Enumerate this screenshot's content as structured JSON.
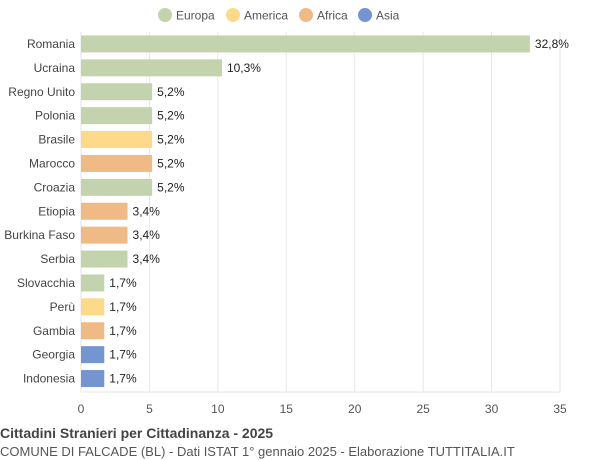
{
  "chart_data": {
    "type": "bar",
    "orientation": "horizontal",
    "title": "Cittadini Stranieri per Cittadinanza - 2025",
    "subtitle": "COMUNE DI FALCADE (BL) - Dati ISTAT 1° gennaio 2025 - Elaborazione TUTTITALIA.IT",
    "xlim": [
      0,
      35
    ],
    "xticks": [
      0,
      5,
      10,
      15,
      20,
      25,
      30,
      35
    ],
    "grid": true,
    "legend_position": "top",
    "legend": [
      {
        "name": "Europa",
        "color": "#c2d3ad"
      },
      {
        "name": "America",
        "color": "#fdd98a"
      },
      {
        "name": "Africa",
        "color": "#f0ba87"
      },
      {
        "name": "Asia",
        "color": "#7495cf"
      }
    ],
    "bars": [
      {
        "category": "Romania",
        "value": 32.8,
        "label": "32,8%",
        "group": "Europa"
      },
      {
        "category": "Ucraina",
        "value": 10.3,
        "label": "10,3%",
        "group": "Europa"
      },
      {
        "category": "Regno Unito",
        "value": 5.2,
        "label": "5,2%",
        "group": "Europa"
      },
      {
        "category": "Polonia",
        "value": 5.2,
        "label": "5,2%",
        "group": "Europa"
      },
      {
        "category": "Brasile",
        "value": 5.2,
        "label": "5,2%",
        "group": "America"
      },
      {
        "category": "Marocco",
        "value": 5.2,
        "label": "5,2%",
        "group": "Africa"
      },
      {
        "category": "Croazia",
        "value": 5.2,
        "label": "5,2%",
        "group": "Europa"
      },
      {
        "category": "Etiopia",
        "value": 3.4,
        "label": "3,4%",
        "group": "Africa"
      },
      {
        "category": "Burkina Faso",
        "value": 3.4,
        "label": "3,4%",
        "group": "Africa"
      },
      {
        "category": "Serbia",
        "value": 3.4,
        "label": "3,4%",
        "group": "Europa"
      },
      {
        "category": "Slovacchia",
        "value": 1.7,
        "label": "1,7%",
        "group": "Europa"
      },
      {
        "category": "Perù",
        "value": 1.7,
        "label": "1,7%",
        "group": "America"
      },
      {
        "category": "Gambia",
        "value": 1.7,
        "label": "1,7%",
        "group": "Africa"
      },
      {
        "category": "Georgia",
        "value": 1.7,
        "label": "1,7%",
        "group": "Asia"
      },
      {
        "category": "Indonesia",
        "value": 1.7,
        "label": "1,7%",
        "group": "Asia"
      }
    ]
  }
}
